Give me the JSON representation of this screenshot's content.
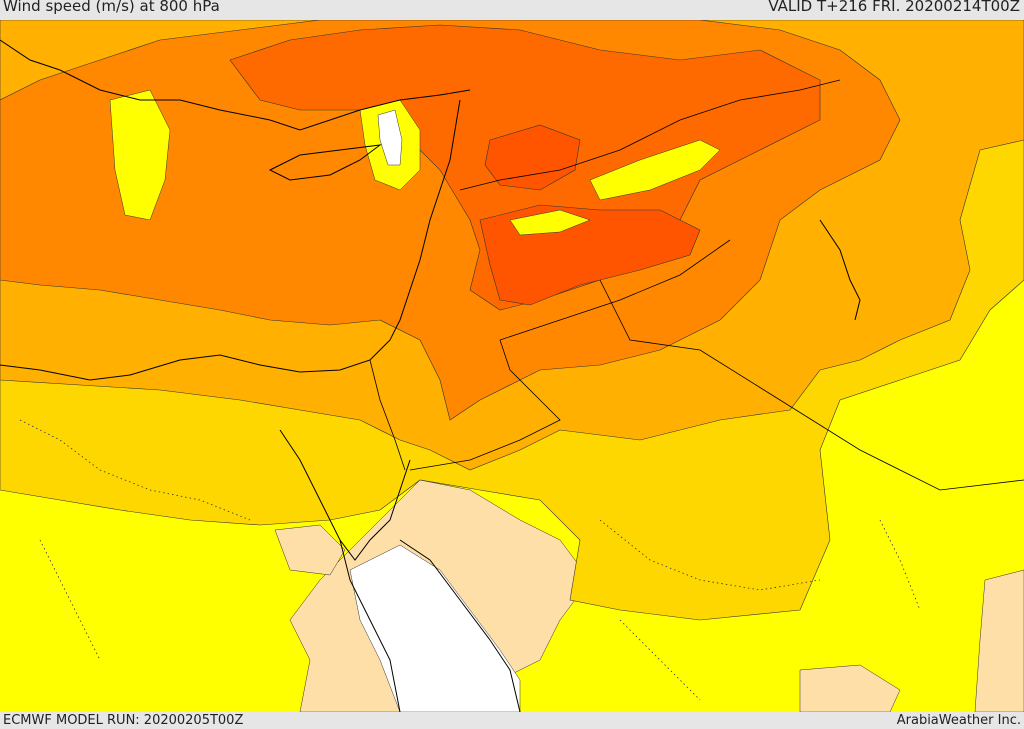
{
  "header": {
    "title": "Wind speed (m/s) at 800 hPa",
    "valid": "VALID T+216 FRI. 20200214T00Z"
  },
  "footer": {
    "model_run": "ECMWF MODEL RUN: 20200205T00Z",
    "credit": "ArabiaWeather Inc."
  },
  "map": {
    "variable": "wind speed",
    "units": "m/s",
    "level": "800 hPa",
    "colors": {
      "lowest": "#ffdfa8",
      "low": "#ffff00",
      "moderate": "#ffd700",
      "medium": "#ffb000",
      "high": "#ff8800",
      "very_high": "#ff6a00",
      "extreme": "#ff5500",
      "missing": "#ffffff"
    }
  }
}
